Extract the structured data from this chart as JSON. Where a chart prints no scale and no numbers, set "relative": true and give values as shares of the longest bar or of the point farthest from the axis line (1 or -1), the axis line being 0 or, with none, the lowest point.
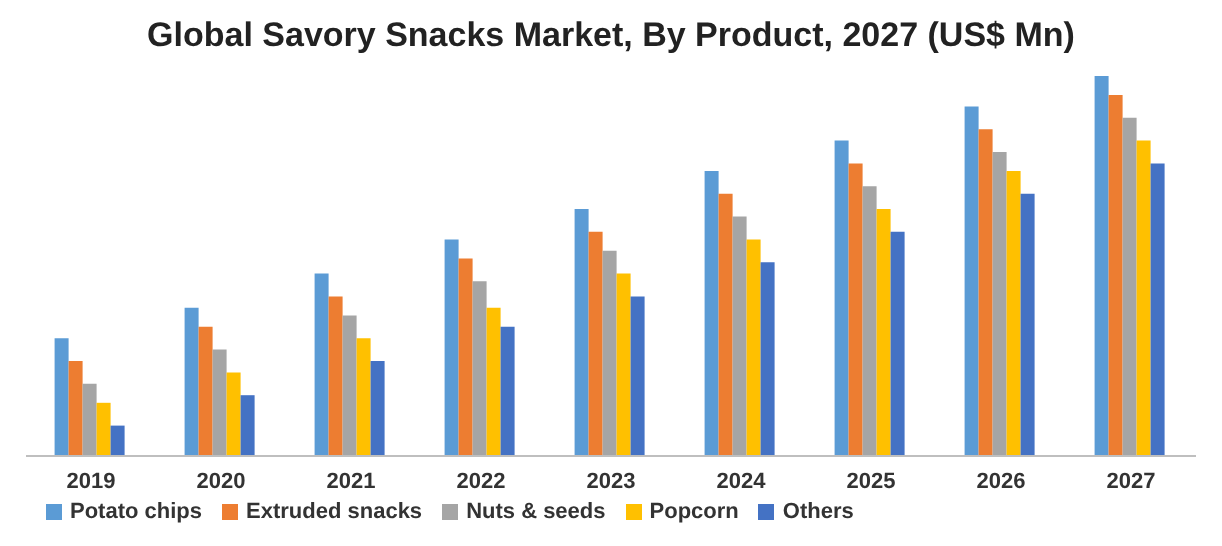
{
  "chart_data": {
    "type": "bar",
    "title": "Global Savory Snacks Market, By Product, 2027 (US$ Mn)",
    "relative": true,
    "legend": "bottom",
    "categories": [
      "2019",
      "2020",
      "2021",
      "2022",
      "2023",
      "2024",
      "2025",
      "2026",
      "2027"
    ],
    "series": [
      {
        "name": "Potato chips",
        "color": "#5b9bd5",
        "values": [
          0.31,
          0.39,
          0.48,
          0.57,
          0.65,
          0.75,
          0.83,
          0.92,
          1
        ]
      },
      {
        "name": "Extruded snacks",
        "color": "#ed7d31",
        "values": [
          0.25,
          0.34,
          0.42,
          0.52,
          0.59,
          0.69,
          0.77,
          0.86,
          0.95
        ]
      },
      {
        "name": "Nuts & seeds",
        "color": "#a5a5a5",
        "values": [
          0.19,
          0.28,
          0.37,
          0.46,
          0.54,
          0.63,
          0.71,
          0.8,
          0.89
        ]
      },
      {
        "name": "Popcorn",
        "color": "#ffc000",
        "values": [
          0.14,
          0.22,
          0.31,
          0.39,
          0.48,
          0.57,
          0.65,
          0.75,
          0.83
        ]
      },
      {
        "name": "Others",
        "color": "#4472c4",
        "values": [
          0.08,
          0.16,
          0.25,
          0.34,
          0.42,
          0.51,
          0.59,
          0.69,
          0.77
        ]
      }
    ]
  }
}
